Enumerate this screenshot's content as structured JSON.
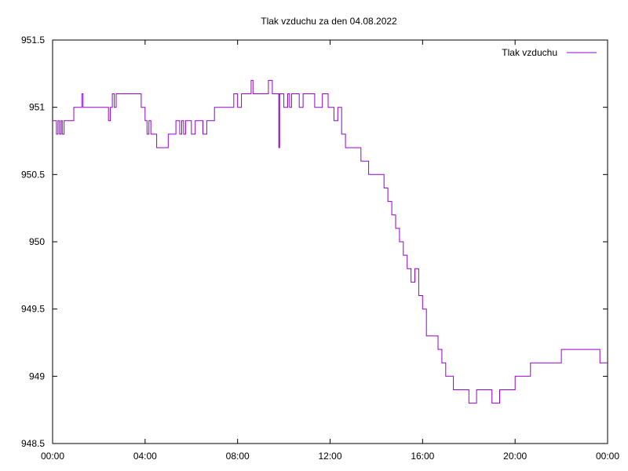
{
  "chart_data": {
    "type": "line",
    "title": "Tlak vzduchu za den 04.08.2022",
    "xlabel": "",
    "ylabel": "",
    "x_range_minutes": [
      0,
      1440
    ],
    "ylim": [
      948.5,
      951.5
    ],
    "x_tick_labels": [
      "00:00",
      "04:00",
      "08:00",
      "12:00",
      "16:00",
      "20:00",
      "00:00"
    ],
    "y_tick_labels": [
      "948.5",
      "949",
      "949.5",
      "950",
      "950.5",
      "951",
      "951.5"
    ],
    "grid": false,
    "legend_position": "top-right",
    "series": [
      {
        "name": "Tlak vzduchu",
        "color": "#9400d3",
        "x_minutes": [
          0,
          8,
          10,
          14,
          18,
          22,
          25,
          30,
          40,
          55,
          60,
          65,
          70,
          76,
          79,
          82,
          90,
          120,
          140,
          145,
          150,
          155,
          160,
          165,
          170,
          180,
          200,
          230,
          240,
          245,
          250,
          255,
          260,
          270,
          280,
          300,
          320,
          330,
          335,
          340,
          345,
          350,
          360,
          370,
          380,
          390,
          400,
          410,
          420,
          440,
          460,
          470,
          480,
          490,
          500,
          510,
          515,
          520,
          525,
          535,
          540,
          560,
          570,
          575,
          585,
          587,
          589,
          600,
          610,
          615,
          620,
          640,
          650,
          660,
          680,
          700,
          710,
          715,
          720,
          730,
          740,
          750,
          760,
          780,
          800,
          810,
          820,
          840,
          850,
          860,
          870,
          880,
          890,
          900,
          910,
          920,
          930,
          940,
          950,
          960,
          970,
          980,
          990,
          1000,
          1010,
          1020,
          1030,
          1040,
          1060,
          1070,
          1080,
          1090,
          1100,
          1110,
          1120,
          1140,
          1150,
          1160,
          1170,
          1175,
          1180,
          1190,
          1200,
          1230,
          1240,
          1250,
          1260,
          1270,
          1280,
          1290,
          1300,
          1310,
          1320,
          1330,
          1340,
          1360,
          1380,
          1400,
          1420,
          1440
        ],
        "values": [
          950.9,
          950.9,
          950.8,
          950.9,
          950.8,
          950.9,
          950.8,
          950.9,
          950.9,
          951.0,
          951.0,
          951.0,
          951.0,
          951.1,
          951.0,
          951.0,
          951.0,
          951.0,
          951.0,
          950.9,
          951.0,
          951.1,
          951.0,
          951.1,
          951.1,
          951.1,
          951.1,
          951.0,
          950.9,
          950.8,
          950.9,
          950.8,
          950.8,
          950.7,
          950.7,
          950.8,
          950.9,
          950.8,
          950.9,
          950.8,
          950.9,
          950.9,
          950.8,
          950.9,
          950.9,
          950.8,
          950.9,
          950.9,
          951.0,
          951.0,
          951.0,
          951.1,
          951.0,
          951.1,
          951.1,
          951.1,
          951.2,
          951.1,
          951.1,
          951.1,
          951.1,
          951.2,
          951.1,
          951.1,
          951.1,
          950.7,
          951.1,
          951.0,
          951.1,
          951.0,
          951.1,
          951.0,
          951.1,
          951.1,
          951.0,
          951.1,
          951.1,
          951.0,
          951.0,
          950.9,
          951.0,
          950.8,
          950.7,
          950.7,
          950.6,
          950.6,
          950.5,
          950.5,
          950.5,
          950.4,
          950.3,
          950.2,
          950.1,
          950.0,
          949.9,
          949.8,
          949.7,
          949.8,
          949.6,
          949.5,
          949.3,
          949.3,
          949.3,
          949.2,
          949.1,
          949.0,
          949.0,
          948.9,
          948.9,
          948.9,
          948.8,
          948.8,
          948.9,
          948.9,
          948.9,
          948.8,
          948.8,
          948.9,
          948.9,
          948.9,
          948.9,
          948.9,
          949.0,
          949.0,
          949.1,
          949.1,
          949.1,
          949.1,
          949.1,
          949.1,
          949.1,
          949.1,
          949.2,
          949.2,
          949.2,
          949.2,
          949.2,
          949.2,
          949.1,
          949.1
        ],
        "x_minutes_detail_note_removed": null
      }
    ]
  }
}
